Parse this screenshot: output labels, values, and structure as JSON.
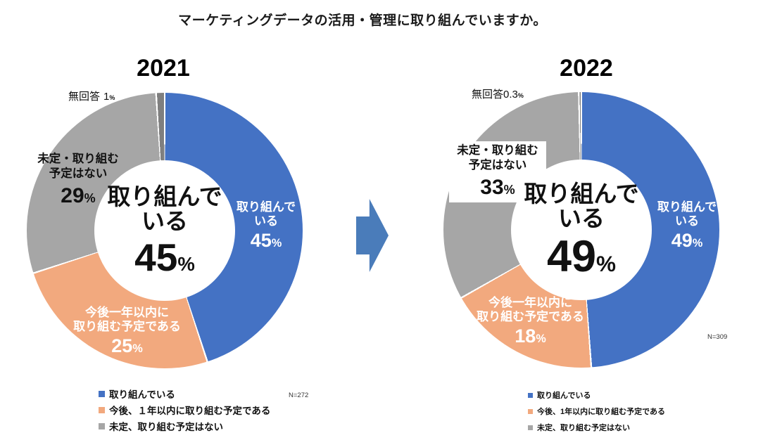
{
  "page": {
    "title": "マーケティングデータの活用・管理に取り組んでいますか。",
    "pct_symbol": "%"
  },
  "arrow": {
    "color": "#4a7cba",
    "direction": "right"
  },
  "chart_data": [
    {
      "type": "pie",
      "subtype": "donut",
      "title": "2021",
      "n_label": "N=272",
      "categories": [
        "取り組んでいる",
        "今後、１年以内に取り組む予定である",
        "未定、取り組む予定はない",
        "無回答"
      ],
      "values": [
        45,
        25,
        29,
        1
      ],
      "colors": [
        "#4472c4",
        "#f2a97e",
        "#a6a6a6",
        "#7f7f7f"
      ],
      "start_angle_deg": 0,
      "direction": "clockwise",
      "hole_ratio": 0.51,
      "legend_position": "bottom",
      "center_label": {
        "line1": "取り組んで",
        "line2": "いる"
      },
      "segment_labels": {
        "working": {
          "line1": "取り組んで",
          "line2": "いる"
        },
        "planning": {
          "line1": "今後一年以内に",
          "line2": "取り組む予定である"
        },
        "undecided": {
          "line1": "未定・取り組む",
          "line2": "予定はない"
        },
        "no_answer": {
          "label": "無回答"
        }
      },
      "legend": [
        "取り組んでいる",
        "今後、１年以内に取り組む予定である",
        "未定、取り組む予定はない"
      ]
    },
    {
      "type": "pie",
      "subtype": "donut",
      "title": "2022",
      "n_label": "N=309",
      "categories": [
        "取り組んでいる",
        "今後、1年以内に取り組む予定である",
        "未定、取り組む予定はない",
        "無回答"
      ],
      "values": [
        49,
        18,
        33,
        0.3
      ],
      "colors": [
        "#4472c4",
        "#f2a97e",
        "#a6a6a6",
        "#7f7f7f"
      ],
      "start_angle_deg": 0,
      "direction": "clockwise",
      "hole_ratio": 0.51,
      "legend_position": "bottom",
      "center_label": {
        "line1": "取り組んで",
        "line2": "いる"
      },
      "segment_labels": {
        "working": {
          "line1": "取り組んで",
          "line2": "いる"
        },
        "planning": {
          "line1": "今後一年以内に",
          "line2": "取り組む予定である"
        },
        "undecided": {
          "line1": "未定・取り組む",
          "line2": "予定はない"
        },
        "no_answer": {
          "label": "無回答"
        }
      },
      "legend": [
        "取り組んでいる",
        "今後、1年以内に取り組む予定である",
        "未定、取り組む予定はない"
      ]
    }
  ]
}
